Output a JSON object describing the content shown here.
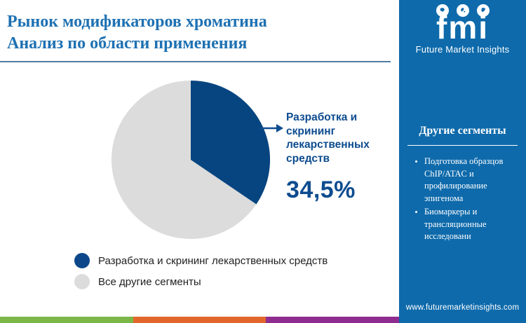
{
  "header": {
    "title_line1": "Рынок модификаторов хроматина",
    "title_line2": "Анализ по области применения"
  },
  "logo": {
    "name": "fmi",
    "subtitle": "Future Market Insights",
    "icons": [
      "americas-globe-icon",
      "europe-globe-icon",
      "asia-globe-icon"
    ]
  },
  "chart_data": {
    "type": "pie",
    "title": "Рынок модификаторов хроматина — Анализ по области применения",
    "categories": [
      "Разработка и скрининг лекарственных средств",
      "Все другие сегменты"
    ],
    "values": [
      34.5,
      65.5
    ],
    "colors": [
      "#074580",
      "#dcdcdc"
    ],
    "start_angle_deg": 0,
    "direction": "clockwise",
    "legend_position": "bottom-left",
    "callout": {
      "label": "Разработка и скрининг лекарственных средств",
      "value_label": "34,5%"
    }
  },
  "legend": {
    "items": [
      {
        "label": "Разработка и скрининг лекарственных средств",
        "color": "#0c4889"
      },
      {
        "label": "Все другие сегменты",
        "color": "#dcdcdc"
      }
    ]
  },
  "sidebar": {
    "heading": "Другие сегменты",
    "bullets": [
      "Подготовка образцов ChIP/ATAC и профилирование эпигенома",
      "Биомаркеры и трансляционные исследовани"
    ],
    "website": "www.futuremarketinsights.com"
  },
  "colors": {
    "title_blue": "#1e71b3",
    "divider_blue": "#4e7ca3",
    "callout_blue": "#0d4c8f",
    "sidebar_blue": "#0e6aab",
    "pie_dark": "#074580",
    "pie_light": "#dcdcdc",
    "footer_green": "#7ab648",
    "footer_orange": "#e2672a",
    "footer_purple": "#8e2d8f",
    "legend_text": "#212121"
  }
}
